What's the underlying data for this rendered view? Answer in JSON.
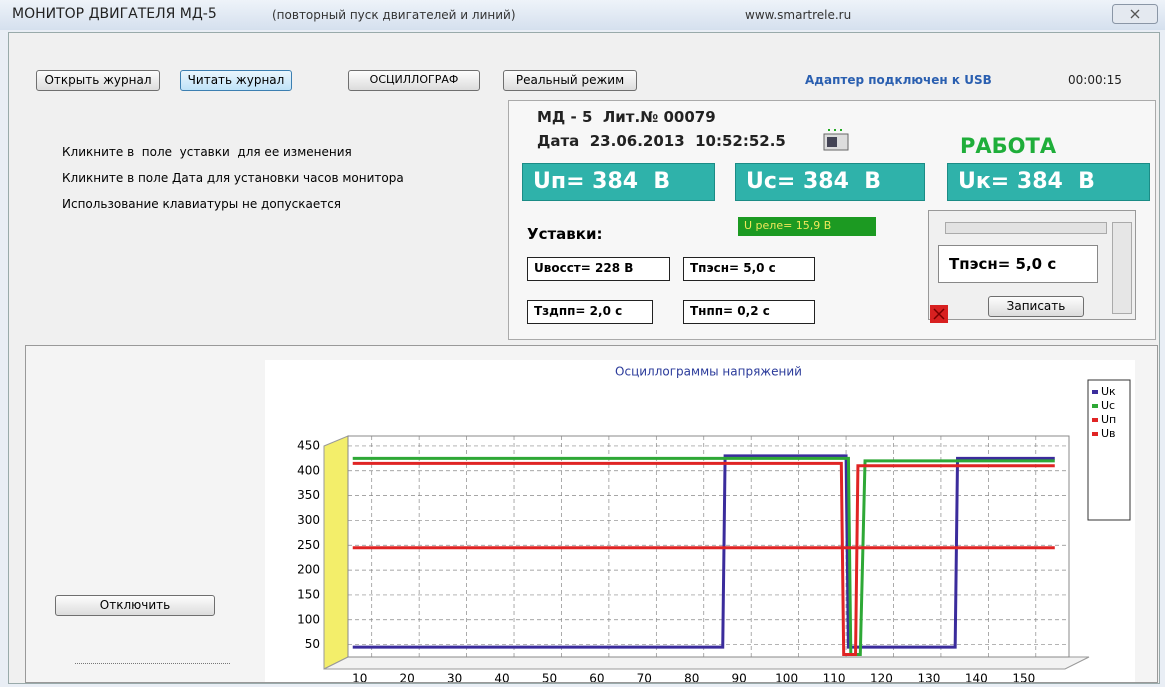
{
  "window": {
    "title": "МОНИТОР ДВИГАТЕЛЯ МД-5",
    "subtitle": "(повторный пуск двигателей и линий)",
    "url": "www.smartrele.ru"
  },
  "toolbar": {
    "buttons": [
      "Открыть журнал",
      "Читать журнал",
      "ОСЦИЛЛОГРАФ",
      "Реальный режим"
    ],
    "status": "Адаптер подключен к USB",
    "timer": "00:00:15"
  },
  "hints": [
    "Кликните в  поле  уставки  для ее изменения",
    "Кликните в поле Дата для установки часов монитора",
    "Использование клавиатуры не допускается"
  ],
  "device": {
    "model": "МД - 5  Лит.№ 00079",
    "date": "Дата  23.06.2013  10:52:52.5",
    "state": "РАБОТА",
    "readings": [
      "Uп= 384  В",
      "Uc= 384  В",
      "Uк= 384  В"
    ],
    "relay": "U реле= 15,9 В",
    "settings_label": "Уставки:",
    "settings": [
      "Uвосст= 228 В",
      "Tпэсн= 5,0 с",
      "Tздпп= 2,0 с",
      "Tнпп= 0,2 с"
    ],
    "editor_value": "Tпэсн= 5,0 с",
    "save_button": "Записать"
  },
  "disconnect_button": "Отключить",
  "chart_data": {
    "type": "line",
    "title": "Осциллограммы напряжений",
    "x": [
      6,
      84,
      84.5,
      109,
      109.5,
      110,
      110.5,
      111,
      112,
      112.5,
      113,
      114,
      133,
      133.5,
      154
    ],
    "series": [
      {
        "name": "Uк",
        "color": "#3b2c9c",
        "values": [
          45,
          45,
          430,
          430,
          430,
          430,
          45,
          45,
          45,
          45,
          45,
          45,
          45,
          425,
          425
        ]
      },
      {
        "name": "Uc",
        "color": "#2ea836",
        "values": [
          425,
          425,
          425,
          425,
          425,
          425,
          425,
          30,
          30,
          30,
          30,
          420,
          420,
          420,
          420
        ]
      },
      {
        "name": "Uп",
        "color": "#e02424",
        "values": [
          415,
          415,
          415,
          415,
          30,
          30,
          30,
          30,
          30,
          410,
          410,
          410,
          410,
          410,
          410
        ]
      },
      {
        "name": "Uв",
        "color": "#e02424",
        "values": [
          245,
          245,
          245,
          245,
          245,
          245,
          245,
          245,
          245,
          245,
          245,
          245,
          245,
          245,
          245
        ]
      }
    ],
    "xlim": [
      5,
      157
    ],
    "ylim": [
      25,
      470
    ],
    "xticks": [
      10,
      20,
      30,
      40,
      50,
      60,
      70,
      80,
      90,
      100,
      110,
      120,
      130,
      140,
      150
    ],
    "yticks": [
      50,
      100,
      150,
      200,
      250,
      300,
      350,
      400,
      450
    ],
    "grid": true,
    "legend": "right"
  }
}
